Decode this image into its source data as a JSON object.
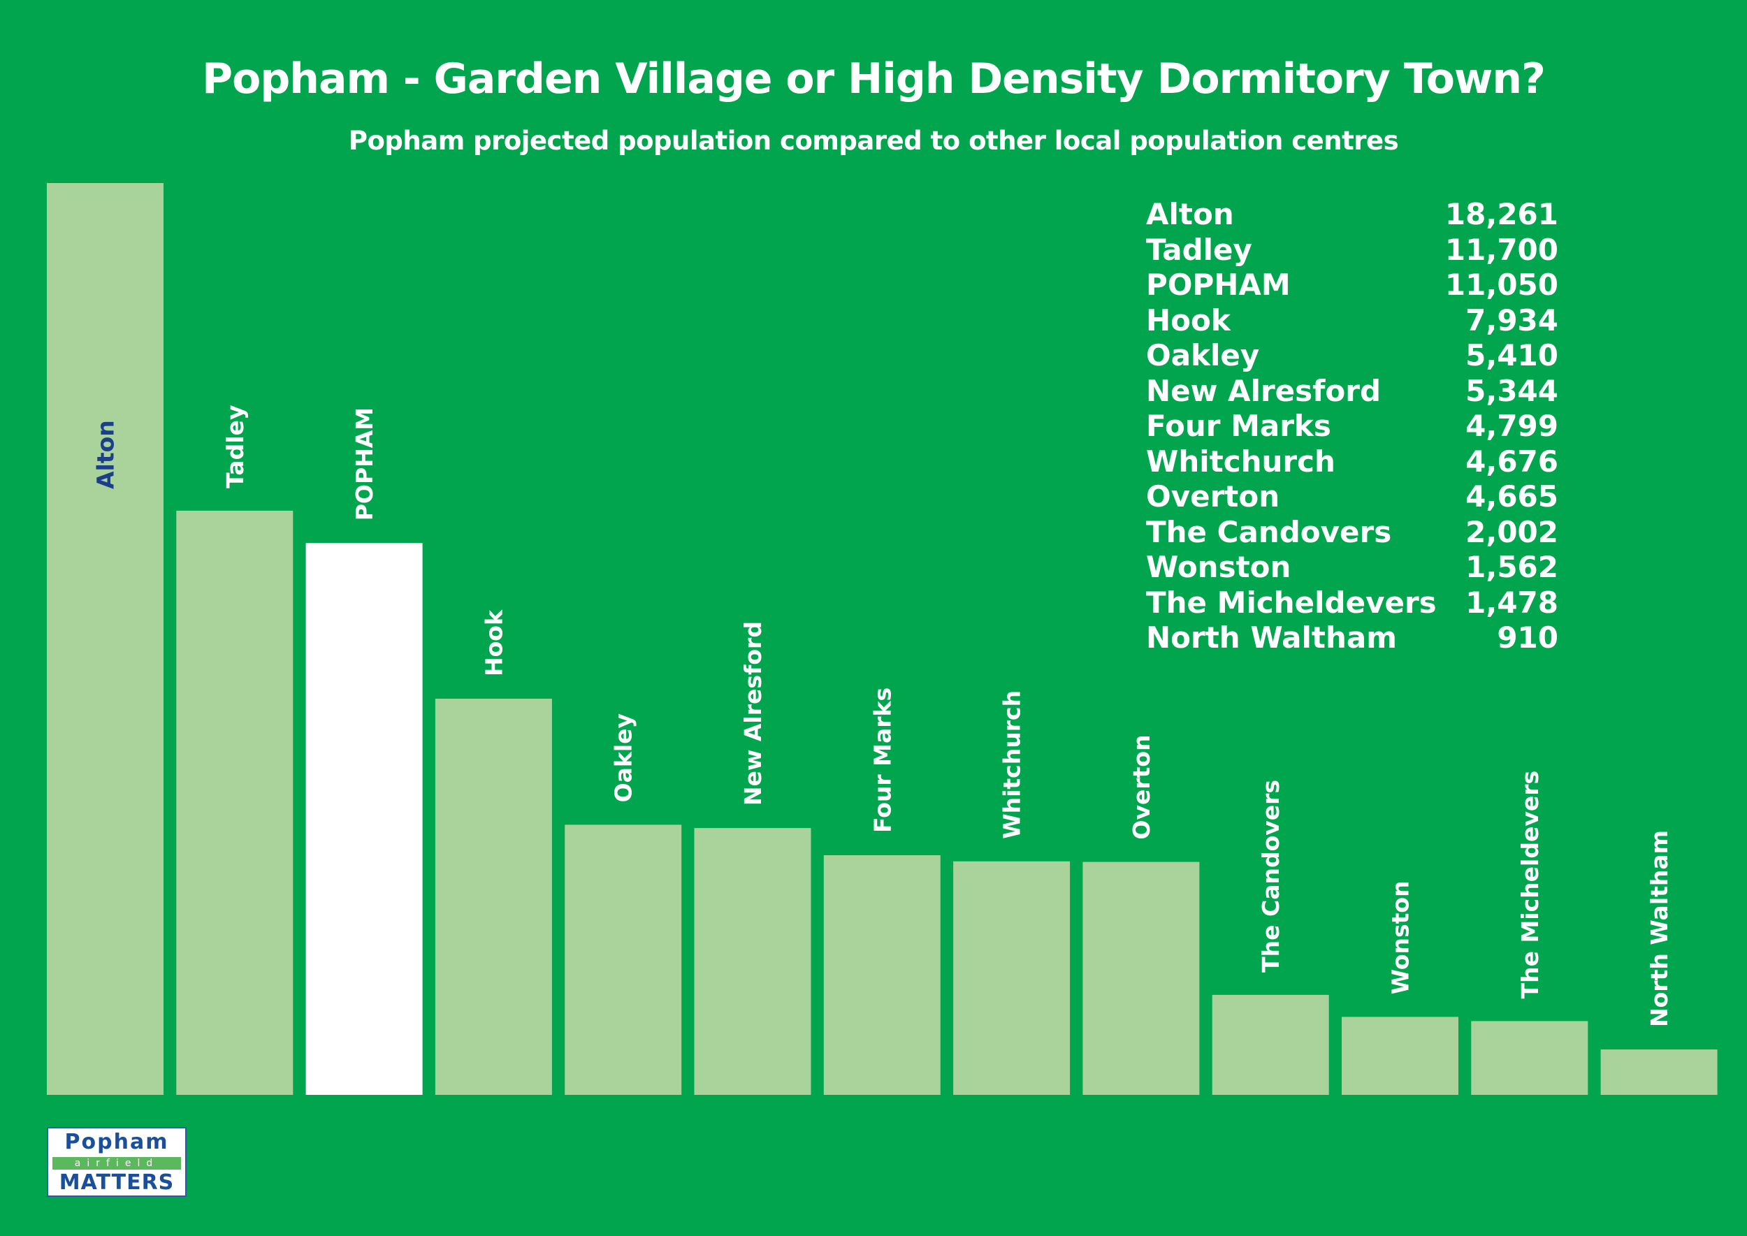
{
  "title": "Popham - Garden Village or High Density Dormitory Town?",
  "subtitle": "Popham projected population compared to other local population centres",
  "colors": {
    "background": "#00a54e",
    "bar": "#a9d39b",
    "highlight_bar": "#ffffff",
    "label_light": "#ffffff",
    "label_dark": "#1b3f8b"
  },
  "chart_data": {
    "type": "bar",
    "title": "Popham - Garden Village or High Density Dormitory Town?",
    "subtitle": "Popham projected population compared to other local population centres",
    "categories": [
      "Alton",
      "Tadley",
      "POPHAM",
      "Hook",
      "Oakley",
      "New Alresford",
      "Four Marks",
      "Whitchurch",
      "Overton",
      "The Candovers",
      "Wonston",
      "The Micheldevers",
      "North Waltham"
    ],
    "values": [
      18261,
      11700,
      11050,
      7934,
      5410,
      5344,
      4799,
      4676,
      4665,
      2002,
      1562,
      1478,
      910
    ],
    "highlight": "POPHAM",
    "xlabel": "",
    "ylabel": "",
    "ylim": [
      0,
      18261
    ],
    "grid": false,
    "legend_position": "top-right"
  },
  "legend": [
    {
      "name": "Alton",
      "value": "18,261"
    },
    {
      "name": "Tadley",
      "value": "11,700"
    },
    {
      "name": "POPHAM",
      "value": "11,050"
    },
    {
      "name": "Hook",
      "value": "7,934"
    },
    {
      "name": "Oakley",
      "value": "5,410"
    },
    {
      "name": "New Alresford",
      "value": "5,344"
    },
    {
      "name": "Four Marks",
      "value": "4,799"
    },
    {
      "name": "Whitchurch",
      "value": "4,676"
    },
    {
      "name": "Overton",
      "value": "4,665"
    },
    {
      "name": "The Candovers",
      "value": "2,002"
    },
    {
      "name": "Wonston",
      "value": "1,562"
    },
    {
      "name": "The Micheldevers",
      "value": "1,478"
    },
    {
      "name": "North Waltham",
      "value": "910"
    }
  ],
  "logo": {
    "top": "Popham",
    "middle": "airfield",
    "bottom": "MATTERS"
  }
}
